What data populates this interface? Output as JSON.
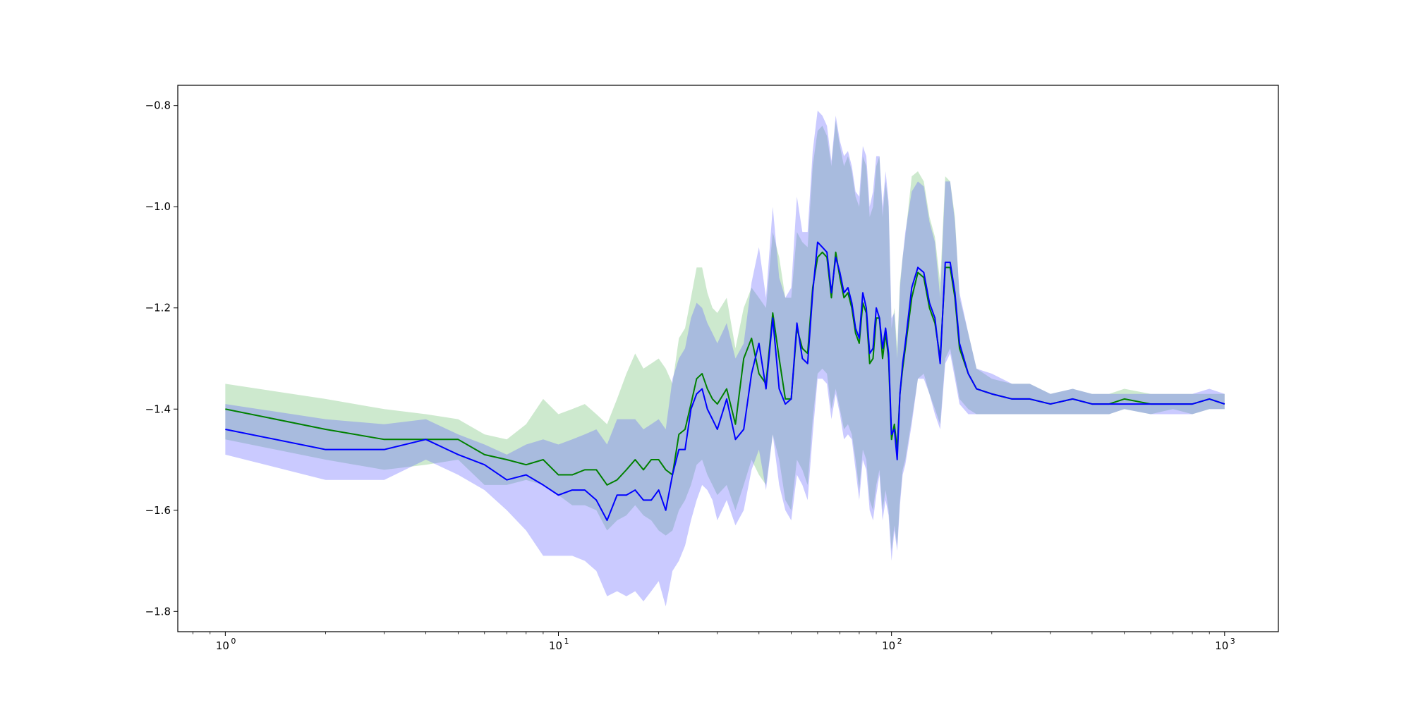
{
  "chart_data": {
    "type": "line",
    "title": "",
    "xlabel": "",
    "ylabel": "",
    "xscale": "log",
    "xlim": [
      0.72,
      1450
    ],
    "ylim": [
      -1.84,
      -0.76
    ],
    "grid": false,
    "legend": "none",
    "yticks": [
      -1.8,
      -1.6,
      -1.4,
      -1.2,
      -1.0,
      -0.8
    ],
    "ytick_labels": [
      "−1.8",
      "−1.6",
      "−1.4",
      "−1.2",
      "−1.0",
      "−0.8"
    ],
    "xticks": [
      1,
      10,
      100,
      1000
    ],
    "xtick_labels": [
      {
        "base": "10",
        "exp": "0"
      },
      {
        "base": "10",
        "exp": "1"
      },
      {
        "base": "10",
        "exp": "2"
      },
      {
        "base": "10",
        "exp": "3"
      }
    ],
    "series": [
      {
        "color": "#008000",
        "band_color": "#4caf50",
        "band_opacity": 0.28,
        "x": [
          1,
          2,
          3,
          4,
          5,
          6,
          7,
          8,
          9,
          10,
          11,
          12,
          13,
          14,
          15,
          16,
          17,
          18,
          19,
          20,
          21,
          22,
          23,
          24,
          25,
          26,
          27,
          28,
          29,
          30,
          32,
          34,
          36,
          38,
          40,
          42,
          44,
          46,
          48,
          50,
          52,
          54,
          56,
          58,
          60,
          62,
          64,
          66,
          68,
          70,
          72,
          74,
          76,
          78,
          80,
          82,
          84,
          86,
          88,
          90,
          92,
          94,
          96,
          98,
          100,
          102,
          104,
          106,
          108,
          110,
          115,
          120,
          125,
          130,
          135,
          140,
          145,
          150,
          155,
          160,
          170,
          180,
          200,
          230,
          260,
          300,
          350,
          400,
          450,
          500,
          600,
          700,
          800,
          900,
          1000
        ],
        "y": [
          -1.4,
          -1.44,
          -1.46,
          -1.46,
          -1.46,
          -1.49,
          -1.5,
          -1.51,
          -1.5,
          -1.53,
          -1.53,
          -1.52,
          -1.52,
          -1.55,
          -1.54,
          -1.52,
          -1.5,
          -1.52,
          -1.5,
          -1.5,
          -1.52,
          -1.53,
          -1.45,
          -1.44,
          -1.39,
          -1.34,
          -1.33,
          -1.36,
          -1.38,
          -1.39,
          -1.36,
          -1.43,
          -1.3,
          -1.26,
          -1.33,
          -1.35,
          -1.21,
          -1.3,
          -1.38,
          -1.38,
          -1.24,
          -1.28,
          -1.29,
          -1.16,
          -1.1,
          -1.09,
          -1.1,
          -1.18,
          -1.09,
          -1.14,
          -1.18,
          -1.17,
          -1.2,
          -1.25,
          -1.27,
          -1.19,
          -1.21,
          -1.31,
          -1.3,
          -1.22,
          -1.22,
          -1.3,
          -1.25,
          -1.3,
          -1.46,
          -1.43,
          -1.48,
          -1.37,
          -1.32,
          -1.28,
          -1.18,
          -1.13,
          -1.14,
          -1.2,
          -1.23,
          -1.3,
          -1.12,
          -1.12,
          -1.18,
          -1.28,
          -1.33,
          -1.36,
          -1.37,
          -1.38,
          -1.38,
          -1.39,
          -1.38,
          -1.39,
          -1.39,
          -1.38,
          -1.39,
          -1.39,
          -1.39,
          -1.38,
          -1.39
        ],
        "lower": [
          -1.46,
          -1.5,
          -1.52,
          -1.51,
          -1.5,
          -1.55,
          -1.55,
          -1.54,
          -1.55,
          -1.57,
          -1.59,
          -1.59,
          -1.6,
          -1.64,
          -1.62,
          -1.61,
          -1.59,
          -1.61,
          -1.62,
          -1.64,
          -1.65,
          -1.64,
          -1.6,
          -1.58,
          -1.55,
          -1.51,
          -1.5,
          -1.53,
          -1.55,
          -1.57,
          -1.55,
          -1.6,
          -1.55,
          -1.5,
          -1.53,
          -1.55,
          -1.45,
          -1.5,
          -1.58,
          -1.6,
          -1.5,
          -1.52,
          -1.55,
          -1.42,
          -1.33,
          -1.32,
          -1.33,
          -1.4,
          -1.36,
          -1.4,
          -1.44,
          -1.43,
          -1.45,
          -1.5,
          -1.56,
          -1.48,
          -1.5,
          -1.58,
          -1.6,
          -1.55,
          -1.52,
          -1.6,
          -1.56,
          -1.6,
          -1.68,
          -1.63,
          -1.67,
          -1.58,
          -1.52,
          -1.5,
          -1.42,
          -1.34,
          -1.33,
          -1.37,
          -1.4,
          -1.43,
          -1.3,
          -1.28,
          -1.33,
          -1.38,
          -1.4,
          -1.41,
          -1.41,
          -1.41,
          -1.41,
          -1.41,
          -1.41,
          -1.41,
          -1.41,
          -1.4,
          -1.41,
          -1.4,
          -1.41,
          -1.4,
          -1.4
        ],
        "upper": [
          -1.35,
          -1.38,
          -1.4,
          -1.41,
          -1.42,
          -1.45,
          -1.46,
          -1.43,
          -1.38,
          -1.41,
          -1.4,
          -1.39,
          -1.41,
          -1.43,
          -1.38,
          -1.33,
          -1.29,
          -1.32,
          -1.31,
          -1.3,
          -1.32,
          -1.35,
          -1.26,
          -1.24,
          -1.18,
          -1.12,
          -1.12,
          -1.17,
          -1.2,
          -1.21,
          -1.18,
          -1.28,
          -1.2,
          -1.16,
          -1.18,
          -1.2,
          -1.05,
          -1.1,
          -1.18,
          -1.18,
          -1.05,
          -1.07,
          -1.08,
          -0.92,
          -0.85,
          -0.84,
          -0.86,
          -0.92,
          -0.83,
          -0.88,
          -0.92,
          -0.9,
          -0.93,
          -0.98,
          -1.0,
          -0.9,
          -0.92,
          -1.02,
          -1.0,
          -0.92,
          -0.9,
          -1.02,
          -0.95,
          -1.0,
          -1.24,
          -1.2,
          -1.28,
          -1.15,
          -1.1,
          -1.06,
          -0.94,
          -0.93,
          -0.95,
          -1.02,
          -1.06,
          -1.15,
          -0.94,
          -0.95,
          -1.02,
          -1.18,
          -1.25,
          -1.32,
          -1.34,
          -1.35,
          -1.35,
          -1.37,
          -1.36,
          -1.37,
          -1.37,
          -1.36,
          -1.37,
          -1.37,
          -1.37,
          -1.37,
          -1.37
        ]
      },
      {
        "color": "#0000ff",
        "band_color": "#5a5aff",
        "band_opacity": 0.32,
        "x": [
          1,
          2,
          3,
          4,
          5,
          6,
          7,
          8,
          9,
          10,
          11,
          12,
          13,
          14,
          15,
          16,
          17,
          18,
          19,
          20,
          21,
          22,
          23,
          24,
          25,
          26,
          27,
          28,
          29,
          30,
          32,
          34,
          36,
          38,
          40,
          42,
          44,
          46,
          48,
          50,
          52,
          54,
          56,
          58,
          60,
          62,
          64,
          66,
          68,
          70,
          72,
          74,
          76,
          78,
          80,
          82,
          84,
          86,
          88,
          90,
          92,
          94,
          96,
          98,
          100,
          102,
          104,
          106,
          108,
          110,
          115,
          120,
          125,
          130,
          135,
          140,
          145,
          150,
          155,
          160,
          170,
          180,
          200,
          230,
          260,
          300,
          350,
          400,
          450,
          500,
          600,
          700,
          800,
          900,
          1000
        ],
        "y": [
          -1.44,
          -1.48,
          -1.48,
          -1.46,
          -1.49,
          -1.51,
          -1.54,
          -1.53,
          -1.55,
          -1.57,
          -1.56,
          -1.56,
          -1.58,
          -1.62,
          -1.57,
          -1.57,
          -1.56,
          -1.58,
          -1.58,
          -1.56,
          -1.6,
          -1.53,
          -1.48,
          -1.48,
          -1.4,
          -1.37,
          -1.36,
          -1.4,
          -1.42,
          -1.44,
          -1.38,
          -1.46,
          -1.44,
          -1.33,
          -1.27,
          -1.36,
          -1.22,
          -1.36,
          -1.39,
          -1.38,
          -1.23,
          -1.3,
          -1.31,
          -1.17,
          -1.07,
          -1.08,
          -1.09,
          -1.17,
          -1.1,
          -1.13,
          -1.17,
          -1.16,
          -1.19,
          -1.24,
          -1.26,
          -1.17,
          -1.2,
          -1.29,
          -1.28,
          -1.2,
          -1.22,
          -1.28,
          -1.24,
          -1.29,
          -1.45,
          -1.44,
          -1.5,
          -1.37,
          -1.31,
          -1.27,
          -1.16,
          -1.12,
          -1.13,
          -1.19,
          -1.22,
          -1.31,
          -1.11,
          -1.11,
          -1.17,
          -1.27,
          -1.33,
          -1.36,
          -1.37,
          -1.38,
          -1.38,
          -1.39,
          -1.38,
          -1.39,
          -1.39,
          -1.39,
          -1.39,
          -1.39,
          -1.39,
          -1.38,
          -1.39
        ],
        "lower": [
          -1.49,
          -1.54,
          -1.54,
          -1.5,
          -1.53,
          -1.56,
          -1.6,
          -1.64,
          -1.69,
          -1.69,
          -1.69,
          -1.7,
          -1.72,
          -1.77,
          -1.76,
          -1.77,
          -1.76,
          -1.78,
          -1.76,
          -1.74,
          -1.79,
          -1.72,
          -1.7,
          -1.67,
          -1.62,
          -1.58,
          -1.55,
          -1.56,
          -1.58,
          -1.62,
          -1.58,
          -1.63,
          -1.6,
          -1.52,
          -1.48,
          -1.56,
          -1.45,
          -1.55,
          -1.6,
          -1.62,
          -1.53,
          -1.55,
          -1.58,
          -1.45,
          -1.34,
          -1.34,
          -1.35,
          -1.42,
          -1.37,
          -1.41,
          -1.46,
          -1.45,
          -1.46,
          -1.52,
          -1.58,
          -1.5,
          -1.52,
          -1.6,
          -1.62,
          -1.57,
          -1.53,
          -1.62,
          -1.58,
          -1.61,
          -1.7,
          -1.64,
          -1.68,
          -1.59,
          -1.53,
          -1.51,
          -1.43,
          -1.34,
          -1.34,
          -1.37,
          -1.41,
          -1.44,
          -1.31,
          -1.29,
          -1.34,
          -1.39,
          -1.41,
          -1.41,
          -1.41,
          -1.41,
          -1.41,
          -1.41,
          -1.41,
          -1.41,
          -1.41,
          -1.4,
          -1.41,
          -1.41,
          -1.41,
          -1.4,
          -1.4
        ],
        "upper": [
          -1.39,
          -1.42,
          -1.43,
          -1.42,
          -1.45,
          -1.47,
          -1.49,
          -1.47,
          -1.46,
          -1.47,
          -1.46,
          -1.45,
          -1.44,
          -1.47,
          -1.42,
          -1.42,
          -1.42,
          -1.44,
          -1.43,
          -1.42,
          -1.44,
          -1.34,
          -1.3,
          -1.28,
          -1.22,
          -1.19,
          -1.2,
          -1.23,
          -1.25,
          -1.27,
          -1.23,
          -1.3,
          -1.27,
          -1.15,
          -1.08,
          -1.18,
          -1.0,
          -1.14,
          -1.18,
          -1.16,
          -0.98,
          -1.05,
          -1.05,
          -0.89,
          -0.81,
          -0.82,
          -0.84,
          -0.91,
          -0.82,
          -0.87,
          -0.9,
          -0.89,
          -0.92,
          -0.97,
          -0.98,
          -0.88,
          -0.9,
          -1.0,
          -0.97,
          -0.9,
          -0.9,
          -1.0,
          -0.93,
          -0.99,
          -1.22,
          -1.21,
          -1.3,
          -1.16,
          -1.1,
          -1.05,
          -0.97,
          -0.95,
          -0.96,
          -1.03,
          -1.07,
          -1.18,
          -0.95,
          -0.95,
          -1.03,
          -1.17,
          -1.25,
          -1.32,
          -1.33,
          -1.35,
          -1.35,
          -1.37,
          -1.36,
          -1.37,
          -1.37,
          -1.37,
          -1.37,
          -1.37,
          -1.37,
          -1.36,
          -1.37
        ]
      }
    ]
  }
}
